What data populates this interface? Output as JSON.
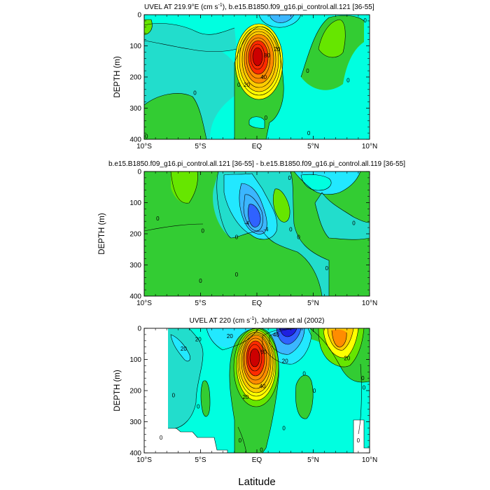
{
  "figure": {
    "xlabel": "Latitude"
  },
  "colors": {
    "cyan_light": "#00ffe0",
    "aqua": "#22e8ff",
    "teal": "#22ddcc",
    "sky": "#3bb6ff",
    "blue": "#2f62ff",
    "navy": "#1e20e0",
    "green": "#33cc33",
    "lime": "#66e600",
    "yellow": "#ffff00",
    "gold": "#ffcc00",
    "orange": "#ff8c00",
    "red": "#ff2a00",
    "darkred": "#cc0000"
  },
  "chart_data": [
    {
      "type": "contour",
      "title_prefix": "UVEL AT 219.9°E (cm s",
      "title_sup": "-1",
      "title_suffix": "), b.e15.B1850.f09_g16.pi_control.all.121 [36-55]",
      "ylabel": "DEPTH (m)",
      "xlim": [
        -10,
        10
      ],
      "ylim": [
        400,
        0
      ],
      "xticks": [
        -10,
        -5,
        0,
        5,
        10
      ],
      "xtick_labels": [
        "10°S",
        "5°S",
        "EQ",
        "5°N",
        "10°N"
      ],
      "yticks": [
        0,
        100,
        200,
        300,
        400
      ],
      "ytick_labels": [
        "0",
        "100",
        "200",
        "300",
        "400"
      ],
      "contour_labels": [
        {
          "text": "0",
          "lat": -9.8,
          "depth": 390
        },
        {
          "text": "0",
          "lat": -5.5,
          "depth": 250
        },
        {
          "text": "20",
          "lat": 1.8,
          "depth": 110
        },
        {
          "text": "80",
          "lat": 0.9,
          "depth": 130
        },
        {
          "text": "20",
          "lat": -0.9,
          "depth": 225
        },
        {
          "text": "40",
          "lat": 0.6,
          "depth": 200
        },
        {
          "text": "0",
          "lat": -1.6,
          "depth": 225
        },
        {
          "text": "0",
          "lat": 4.5,
          "depth": 180
        },
        {
          "text": "0",
          "lat": 8.1,
          "depth": 210
        },
        {
          "text": "0",
          "lat": 9.6,
          "depth": 18
        },
        {
          "text": "0",
          "lat": 0.8,
          "depth": 330
        },
        {
          "text": "0",
          "lat": 4.6,
          "depth": 380
        }
      ]
    },
    {
      "type": "contour",
      "title": "b.e15.B1850.f09_g16.pi_control.all.121 [36-55] - b.e15.B1850.f09_g16.pi_control.all.119 [36-55]",
      "ylabel": "DEPTH (m)",
      "xlim": [
        -10,
        10
      ],
      "ylim": [
        400,
        0
      ],
      "xticks": [
        -10,
        -5,
        0,
        5,
        10
      ],
      "xtick_labels": [
        "10°S",
        "5°S",
        "EQ",
        "5°N",
        "10°N"
      ],
      "yticks": [
        0,
        100,
        200,
        300,
        400
      ],
      "ytick_labels": [
        "0",
        "100",
        "200",
        "300",
        "400"
      ],
      "contour_labels": [
        {
          "text": "0",
          "lat": -8.8,
          "depth": 150
        },
        {
          "text": "0",
          "lat": -4.8,
          "depth": 190
        },
        {
          "text": "0",
          "lat": -1.8,
          "depth": 210
        },
        {
          "text": "-4",
          "lat": -0.9,
          "depth": 165
        },
        {
          "text": "-4",
          "lat": 0.8,
          "depth": 185
        },
        {
          "text": "0",
          "lat": 3.0,
          "depth": 185
        },
        {
          "text": "0",
          "lat": 2.9,
          "depth": 20
        },
        {
          "text": "0",
          "lat": 3.7,
          "depth": 210
        },
        {
          "text": "0",
          "lat": 8.6,
          "depth": 165
        },
        {
          "text": "0",
          "lat": -5.0,
          "depth": 350
        },
        {
          "text": "0",
          "lat": -1.8,
          "depth": 330
        },
        {
          "text": "0",
          "lat": 6.2,
          "depth": 310
        }
      ]
    },
    {
      "type": "contour",
      "title_prefix": "UVEL AT 220 (cm s",
      "title_sup": "-1",
      "title_suffix": "), Johnson et al (2002)",
      "ylabel": "DEPTH (m)",
      "xlim": [
        -10,
        10
      ],
      "ylim": [
        400,
        0
      ],
      "xticks": [
        -10,
        -5,
        0,
        5,
        10
      ],
      "xtick_labels": [
        "10°S",
        "5°S",
        "EQ",
        "5°N",
        "10°N"
      ],
      "yticks": [
        0,
        100,
        200,
        300,
        400
      ],
      "ytick_labels": [
        "0",
        "100",
        "200",
        "300",
        "400"
      ],
      "contour_labels": [
        {
          "text": "20",
          "lat": -5.2,
          "depth": 35
        },
        {
          "text": "20",
          "lat": -6.5,
          "depth": 65
        },
        {
          "text": "20",
          "lat": -2.4,
          "depth": 25
        },
        {
          "text": "40",
          "lat": 1.7,
          "depth": 20
        },
        {
          "text": "60",
          "lat": 0.6,
          "depth": 75
        },
        {
          "text": "20",
          "lat": 2.5,
          "depth": 105
        },
        {
          "text": "40",
          "lat": 0.5,
          "depth": 185
        },
        {
          "text": "20",
          "lat": -1.0,
          "depth": 220
        },
        {
          "text": "0",
          "lat": -7.4,
          "depth": 215
        },
        {
          "text": "0",
          "lat": -5.2,
          "depth": 250
        },
        {
          "text": "0",
          "lat": 4.2,
          "depth": 145
        },
        {
          "text": "0",
          "lat": 5.1,
          "depth": 200
        },
        {
          "text": "20",
          "lat": 8.0,
          "depth": 95
        },
        {
          "text": "0",
          "lat": 9.4,
          "depth": 160
        },
        {
          "text": "0",
          "lat": 9.5,
          "depth": 190
        },
        {
          "text": "0",
          "lat": 2.4,
          "depth": 320
        },
        {
          "text": "0",
          "lat": -1.5,
          "depth": 360
        },
        {
          "text": "0",
          "lat": 0.4,
          "depth": 390
        },
        {
          "text": "0",
          "lat": -8.5,
          "depth": 350
        },
        {
          "text": "0",
          "lat": 9.0,
          "depth": 360
        }
      ]
    }
  ]
}
